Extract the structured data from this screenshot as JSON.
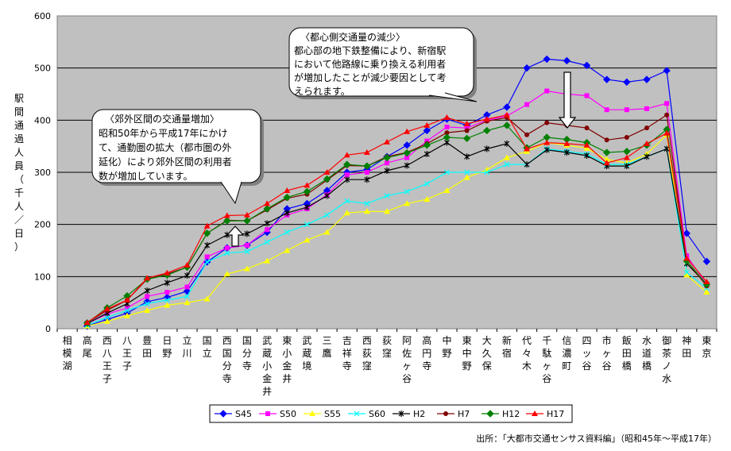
{
  "chart_data": {
    "type": "line",
    "ylabel": "駅間通過人員（千人／日）",
    "ylim": [
      0,
      600
    ],
    "yticks": [
      0,
      100,
      200,
      300,
      400,
      500,
      600
    ],
    "grid": "horizontal",
    "legend_position": "bottom",
    "categories": [
      "相模湖",
      "高尾",
      "西八王子",
      "八王子",
      "豊田",
      "日野",
      "立川",
      "国立",
      "西国分寺",
      "国分寺",
      "武蔵小金井",
      "東小金井",
      "武蔵境",
      "三鷹",
      "吉祥寺",
      "西荻窪",
      "荻窪",
      "阿佐ヶ谷",
      "高円寺",
      "中野",
      "東中野",
      "大久保",
      "新宿",
      "代々木",
      "千駄ヶ谷",
      "信濃町",
      "四ッ谷",
      "市ヶ谷",
      "飯田橋",
      "水道橋",
      "御茶ノ水",
      "神田",
      "東京"
    ],
    "series": [
      {
        "name": "S45",
        "color": "#0000ff",
        "marker": "diamond",
        "values": [
          null,
          5,
          18,
          30,
          52,
          60,
          72,
          128,
          155,
          160,
          185,
          230,
          240,
          265,
          300,
          305,
          330,
          352,
          380,
          402,
          390,
          410,
          425,
          500,
          517,
          514,
          505,
          478,
          473,
          478,
          495,
          183,
          129
        ]
      },
      {
        "name": "S50",
        "color": "#ff00ff",
        "marker": "square",
        "values": [
          null,
          10,
          28,
          40,
          62,
          70,
          80,
          138,
          155,
          160,
          190,
          218,
          230,
          257,
          295,
          300,
          318,
          328,
          360,
          387,
          385,
          400,
          408,
          430,
          456,
          450,
          447,
          420,
          420,
          422,
          432,
          140,
          85
        ]
      },
      {
        "name": "S55",
        "color": "#ffff00",
        "marker": "triangle",
        "values": [
          null,
          5,
          14,
          25,
          35,
          45,
          50,
          57,
          105,
          115,
          130,
          150,
          170,
          185,
          222,
          225,
          225,
          240,
          248,
          265,
          290,
          305,
          328,
          340,
          357,
          352,
          346,
          325,
          318,
          335,
          372,
          103,
          70
        ]
      },
      {
        "name": "S60",
        "color": "#00ffff",
        "marker": "x",
        "values": [
          null,
          7,
          22,
          35,
          48,
          55,
          62,
          128,
          145,
          148,
          166,
          185,
          200,
          218,
          245,
          240,
          255,
          263,
          278,
          300,
          300,
          300,
          315,
          315,
          345,
          340,
          335,
          315,
          315,
          330,
          345,
          108,
          78
        ]
      },
      {
        "name": "H2",
        "color": "#000000",
        "marker": "star",
        "values": [
          null,
          10,
          30,
          48,
          73,
          88,
          102,
          160,
          180,
          182,
          202,
          222,
          233,
          255,
          286,
          286,
          303,
          313,
          335,
          357,
          330,
          345,
          355,
          315,
          343,
          338,
          332,
          312,
          312,
          330,
          345,
          125,
          85
        ]
      },
      {
        "name": "H7",
        "color": "#800000",
        "marker": "circle",
        "values": [
          null,
          12,
          35,
          55,
          95,
          105,
          118,
          183,
          208,
          207,
          228,
          250,
          258,
          285,
          313,
          312,
          330,
          338,
          355,
          376,
          380,
          398,
          405,
          372,
          395,
          390,
          385,
          362,
          367,
          385,
          410,
          130,
          82
        ]
      },
      {
        "name": "H12",
        "color": "#008000",
        "marker": "diamond",
        "values": [
          null,
          11,
          40,
          63,
          95,
          103,
          118,
          183,
          207,
          207,
          230,
          252,
          263,
          287,
          315,
          312,
          328,
          337,
          352,
          367,
          365,
          380,
          390,
          347,
          367,
          363,
          357,
          338,
          340,
          352,
          382,
          130,
          85
        ]
      },
      {
        "name": "H17",
        "color": "#ff0000",
        "marker": "triangle",
        "values": [
          null,
          12,
          38,
          55,
          97,
          107,
          122,
          197,
          217,
          218,
          240,
          265,
          275,
          300,
          333,
          338,
          358,
          378,
          390,
          405,
          393,
          402,
          410,
          345,
          357,
          355,
          352,
          318,
          328,
          355,
          375,
          135,
          90
        ]
      }
    ],
    "annotations": [
      {
        "id": "suburban",
        "lines": [
          "〈郊外区間の交通量増加〉",
          "昭和50年から平成17年にかけ",
          "て、通勤圏の拡大（都市圏の外",
          "延化）により郊外区間の利用者",
          "数が増加しています。"
        ],
        "arrow": "up"
      },
      {
        "id": "central",
        "lines": [
          "〈都心側交通量の減少〉",
          "都心部の地下鉄整備により、新宿駅",
          "において他路線に乗り換える利用者",
          "が増加したことが減少要因として考",
          "えられます。"
        ],
        "arrow": "down"
      }
    ],
    "source": "出所：「大都市交通センサス資料編」（昭和45年～平成17年）"
  }
}
